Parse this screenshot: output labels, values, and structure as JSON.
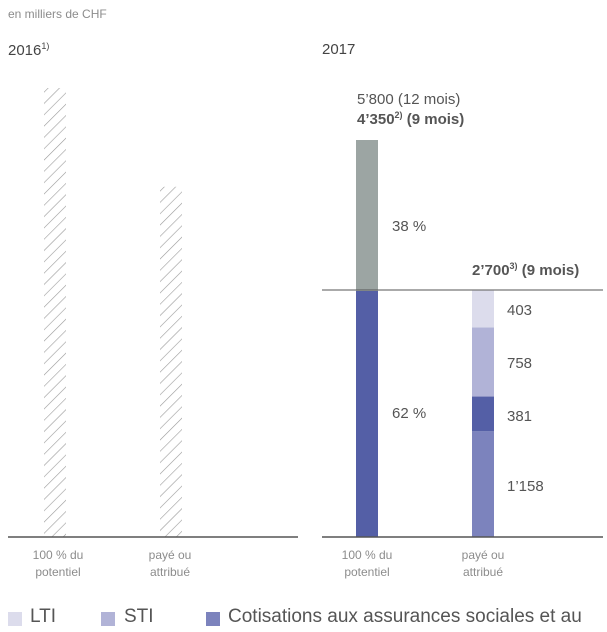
{
  "unit_label": "en milliers de CHF",
  "colors": {
    "lti": "#dcdcec",
    "sti": "#b1b3d7",
    "cotisations": "#7c83bd",
    "base": "#545fa6",
    "variable_potential": "#9ca5a3",
    "hatch": "#9a9a9a",
    "axis": "#555555"
  },
  "chart_data": [
    {
      "type": "bar",
      "year_label": "2016",
      "year_footnote": "1)",
      "categories": [
        "100 % du potentiel",
        "payé ou attribué"
      ],
      "bars": [
        {
          "category": "100 % du potentiel",
          "style": "hatched",
          "relative_height": 1.0
        },
        {
          "category": "payé ou attribué",
          "style": "hatched",
          "relative_height": 0.78
        }
      ]
    },
    {
      "type": "bar",
      "stacked": true,
      "year_label": "2017",
      "categories": [
        "100 % du potentiel",
        "payé ou attribué"
      ],
      "potential": {
        "total_12m_text": "5’800 (12 mois)",
        "total_9m_value": "4’350",
        "total_9m_footnote": "2)",
        "total_9m_suffix": " (9 mois)",
        "total_value": 4350,
        "segments": [
          {
            "label": "62 %",
            "share": 0.62,
            "color_key": "base"
          },
          {
            "label": "38 %",
            "share": 0.38,
            "color_key": "variable_potential"
          }
        ]
      },
      "paid": {
        "total_value_text": "2’700",
        "total_footnote": "3)",
        "total_suffix": " (9 mois)",
        "total_value": 2700,
        "segments": [
          {
            "series": "Cotisations aux assurances sociales et au",
            "value": 1158,
            "label": "1’158",
            "color_key": "cotisations"
          },
          {
            "series": "base",
            "value": 381,
            "label": "381",
            "color_key": "base"
          },
          {
            "series": "STI",
            "value": 758,
            "label": "758",
            "color_key": "sti"
          },
          {
            "series": "LTI",
            "value": 403,
            "label": "403",
            "color_key": "lti"
          }
        ]
      }
    }
  ],
  "ticks": {
    "potential_line1": "100 % du",
    "potential_line2": "potentiel",
    "paid_line1": "payé ou",
    "paid_line2": "attribué"
  },
  "legend": [
    {
      "label": "LTI",
      "color_key": "lti"
    },
    {
      "label": "STI",
      "color_key": "sti"
    },
    {
      "label": "Cotisations aux assurances sociales et au",
      "color_key": "cotisations"
    }
  ]
}
